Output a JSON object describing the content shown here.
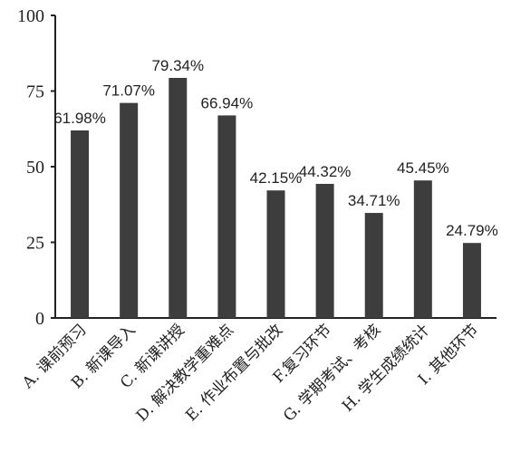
{
  "chart_data": {
    "type": "bar",
    "categories": [
      "A. 课前预习",
      "B. 新课导入",
      "C. 新课讲授",
      "D. 解决教学重难点",
      "E. 作业布置与批改",
      "F.复习环节",
      "G. 学期考试、考核",
      "H. 学生成绩统计",
      "I. 其他环节"
    ],
    "values": [
      61.98,
      71.07,
      79.34,
      66.94,
      42.15,
      44.32,
      34.71,
      45.45,
      24.79
    ],
    "data_labels": [
      "61.98%",
      "71.07%",
      "79.34%",
      "66.94%",
      "42.15%",
      "44.32%",
      "34.71%",
      "45.45%",
      "24.79%"
    ],
    "yticks": [
      "0",
      "25",
      "50",
      "75",
      "100"
    ],
    "ylim": [
      0,
      100
    ],
    "title": "",
    "xlabel": "",
    "ylabel": "",
    "grid": false,
    "colors": {
      "bar": "#3d3d3d",
      "axis": "#222222"
    }
  }
}
